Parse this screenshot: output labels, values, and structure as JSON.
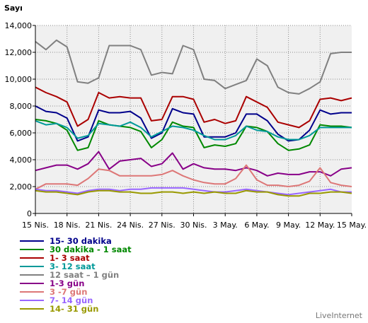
{
  "chart_data": {
    "type": "line",
    "ylabel": "Sayı",
    "ylim": [
      0,
      14000
    ],
    "yticks": [
      0,
      2000,
      4000,
      6000,
      8000,
      10000,
      12000,
      14000
    ],
    "ytick_labels": [
      "0",
      "2,000",
      "4,000",
      "6,000",
      "8,000",
      "10,000",
      "12,000",
      "14,000"
    ],
    "x": [
      "15 Nis.",
      "16 Nis.",
      "17 Nis.",
      "18 Nis.",
      "19 Nis.",
      "20 Nis.",
      "21 Nis.",
      "22 Nis.",
      "23 Nis.",
      "24 Nis.",
      "25 Nis.",
      "26 Nis.",
      "27 Nis.",
      "28 Nis.",
      "29 Nis.",
      "30 Nis.",
      "1 May.",
      "2 May.",
      "3 May.",
      "4 May.",
      "5 May.",
      "6 May.",
      "7 May.",
      "8 May.",
      "9 May.",
      "10 May.",
      "11 May.",
      "12 May.",
      "13 May.",
      "14 May.",
      "15 May."
    ],
    "xtick_labels": [
      "15 Nis.",
      "18 Nis.",
      "21 Nis.",
      "24 Nis.",
      "27 Nis.",
      "30 Nis.",
      "3 May.",
      "6 May.",
      "9 May.",
      "12 May.",
      "15 May."
    ],
    "grid": true,
    "legend_position": "bottom-left",
    "plot_background": "#f0f0f0",
    "series": [
      {
        "name": "15- 30 dakika",
        "color": "#00008b",
        "values": [
          8000,
          7600,
          7500,
          7100,
          5400,
          5700,
          7700,
          7500,
          7500,
          7600,
          7100,
          5600,
          6000,
          7800,
          7500,
          7400,
          5700,
          5700,
          5700,
          6000,
          7400,
          7400,
          6900,
          5900,
          5400,
          5500,
          6200,
          7700,
          7400,
          7500,
          7500
        ]
      },
      {
        "name": "30 dakika - 1 saat",
        "color": "#008800",
        "values": [
          7000,
          6900,
          6700,
          6200,
          4700,
          4900,
          6900,
          6600,
          6500,
          6400,
          6100,
          4900,
          5500,
          6800,
          6500,
          6400,
          4900,
          5100,
          5000,
          5200,
          6500,
          6400,
          6100,
          5200,
          4700,
          4800,
          5100,
          6600,
          6500,
          6500,
          6400
        ]
      },
      {
        "name": "1- 3 saat",
        "color": "#aa0000",
        "values": [
          9400,
          9000,
          8700,
          8300,
          6500,
          7000,
          9000,
          8600,
          8700,
          8600,
          8600,
          6900,
          7000,
          8700,
          8700,
          8500,
          6800,
          7000,
          6700,
          6900,
          8700,
          8300,
          7900,
          6800,
          6600,
          6400,
          6900,
          8500,
          8600,
          8400,
          8600
        ]
      },
      {
        "name": "3- 12 saat",
        "color": "#009999",
        "values": [
          6900,
          6600,
          6700,
          6400,
          5600,
          5800,
          6700,
          6600,
          6500,
          6800,
          6400,
          5700,
          6100,
          6500,
          6400,
          6200,
          5800,
          5500,
          5500,
          5800,
          6500,
          6200,
          6100,
          5700,
          5500,
          5500,
          5800,
          6400,
          6400,
          6400,
          6400
        ]
      },
      {
        "name": "12 saat – 1 gün",
        "color": "#808080",
        "values": [
          12800,
          12200,
          12900,
          12400,
          9800,
          9700,
          10100,
          12500,
          12500,
          12500,
          12200,
          10300,
          10500,
          10400,
          12500,
          12200,
          10000,
          9900,
          9300,
          9600,
          9900,
          11500,
          11000,
          9400,
          9000,
          8900,
          9300,
          9800,
          11900,
          12000,
          12000
        ]
      },
      {
        "name": "1-3 gün",
        "color": "#880088",
        "values": [
          3200,
          3400,
          3600,
          3600,
          3300,
          3700,
          4600,
          3300,
          3900,
          4000,
          4100,
          3500,
          3700,
          4500,
          3300,
          3700,
          3400,
          3300,
          3300,
          3200,
          3400,
          3200,
          2800,
          3000,
          2900,
          2900,
          3100,
          3100,
          2800,
          3300,
          3400
        ]
      },
      {
        "name": "3 -7 gün",
        "color": "#dd7777",
        "values": [
          1800,
          2200,
          2200,
          2200,
          2100,
          2600,
          3300,
          3200,
          2800,
          2800,
          2800,
          2800,
          2900,
          3200,
          2800,
          2500,
          2300,
          2200,
          2200,
          2600,
          3600,
          2500,
          2100,
          2100,
          2000,
          2100,
          2400,
          3400,
          2300,
          2100,
          2000
        ]
      },
      {
        "name": "7- 14 gün",
        "color": "#9966ff",
        "values": [
          1800,
          1700,
          1700,
          1600,
          1500,
          1700,
          1800,
          1800,
          1700,
          1800,
          1800,
          1900,
          1900,
          1900,
          1900,
          1800,
          1700,
          1600,
          1600,
          1700,
          1800,
          1700,
          1600,
          1500,
          1400,
          1500,
          1600,
          1700,
          1800,
          1600,
          1600
        ]
      },
      {
        "name": "14- 31 gün",
        "color": "#999900",
        "values": [
          1700,
          1600,
          1600,
          1500,
          1400,
          1600,
          1700,
          1700,
          1600,
          1600,
          1500,
          1500,
          1600,
          1600,
          1500,
          1600,
          1500,
          1600,
          1500,
          1500,
          1700,
          1600,
          1600,
          1400,
          1300,
          1300,
          1500,
          1500,
          1600,
          1600,
          1500
        ]
      }
    ]
  },
  "credit": "LiveInternet"
}
